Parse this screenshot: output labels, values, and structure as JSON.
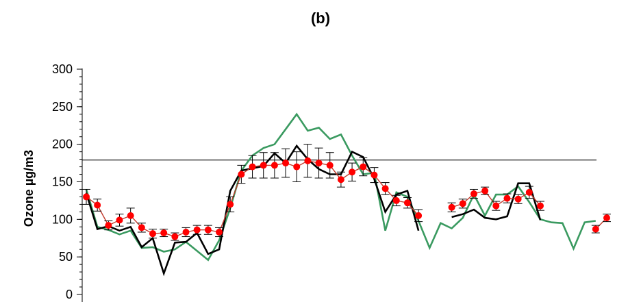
{
  "chart_data": {
    "type": "line",
    "title": "(b)",
    "xlabel": "",
    "ylabel": "Ozone   µg/m3",
    "ylim": [
      0,
      300
    ],
    "yticks": [
      0,
      50,
      100,
      150,
      200,
      250,
      300
    ],
    "grid": false,
    "reference_line": {
      "y": 179,
      "x_start": 0,
      "x_end": 65
    },
    "colors": {
      "observed": "#ff0000",
      "observed_line": "#c0392b",
      "black": "#000000",
      "green": "#3a9a60",
      "ref": "#000000"
    },
    "series": [
      {
        "values": [
          130,
          119,
          92,
          99,
          105,
          89,
          81,
          82,
          77,
          83,
          86,
          86,
          83,
          120,
          160,
          170,
          172,
          172,
          175,
          170,
          178,
          175,
          172,
          153,
          163,
          170,
          159,
          141,
          125,
          122,
          105,
          null,
          null,
          116,
          121,
          134,
          138,
          118,
          128,
          127,
          136,
          118,
          null,
          null,
          null,
          null,
          87,
          102
        ],
        "error": [
          10,
          8,
          6,
          8,
          10,
          6,
          6,
          5,
          5,
          6,
          6,
          6,
          6,
          10,
          12,
          15,
          17,
          17,
          19,
          20,
          22,
          20,
          17,
          10,
          12,
          12,
          10,
          8,
          7,
          7,
          8,
          null,
          null,
          6,
          6,
          6,
          5,
          6,
          6,
          6,
          8,
          6,
          null,
          null,
          null,
          null,
          5,
          5
        ]
      },
      {
        "values": [
          135,
          87,
          91,
          85,
          90,
          63,
          75,
          28,
          69,
          70,
          82,
          54,
          60,
          138,
          165,
          168,
          171,
          188,
          175,
          198,
          180,
          167,
          160,
          160,
          190,
          183,
          154,
          110,
          133,
          138,
          85,
          null,
          null,
          103,
          107,
          113,
          102,
          100,
          104,
          148,
          148,
          99
        ]
      },
      {
        "values": [
          140,
          90,
          86,
          80,
          85,
          62,
          63,
          57,
          60,
          70,
          58,
          46,
          72,
          115,
          165,
          185,
          195,
          200,
          220,
          240,
          218,
          222,
          207,
          213,
          185,
          160,
          162,
          85,
          136,
          130,
          98,
          62,
          95,
          88,
          102,
          133,
          105,
          133,
          133,
          144,
          123,
          100,
          96,
          95,
          61,
          96,
          98
        ]
      }
    ]
  }
}
